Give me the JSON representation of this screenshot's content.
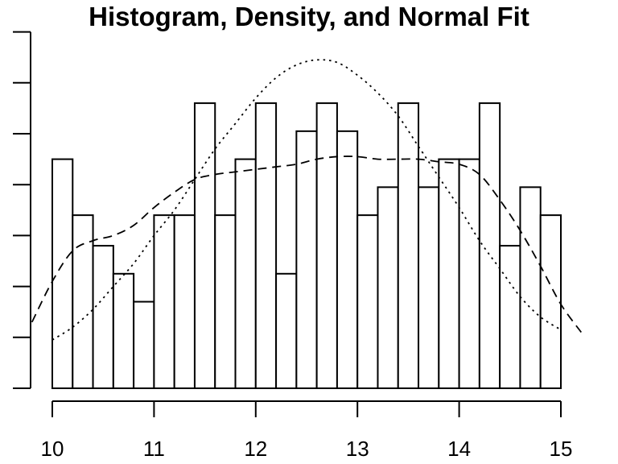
{
  "chart_data": {
    "type": "bar",
    "title": "Histogram, Density, and Normal Fit",
    "xlabel": "",
    "ylabel": "",
    "xlim": [
      10,
      15
    ],
    "ylim": [
      0,
      0.75
    ],
    "grid": false,
    "x_ticks": [
      10,
      11,
      12,
      13,
      14,
      15
    ],
    "y_ticks": [
      0,
      0.1,
      0.2,
      0.3,
      0.4,
      0.5,
      0.6,
      0.7
    ],
    "y_tick_labels_shown": false,
    "bin_width": 0.2,
    "bins": {
      "starts": [
        10.0,
        10.2,
        10.4,
        10.6,
        10.8,
        11.0,
        11.2,
        11.4,
        11.6,
        11.8,
        12.0,
        12.2,
        12.4,
        12.6,
        12.8,
        13.0,
        13.2,
        13.4,
        13.6,
        13.8,
        14.0,
        14.2,
        14.4,
        14.6,
        14.8
      ],
      "densities": [
        0.45,
        0.34,
        0.28,
        0.225,
        0.17,
        0.34,
        0.34,
        0.56,
        0.34,
        0.45,
        0.56,
        0.225,
        0.505,
        0.56,
        0.505,
        0.34,
        0.395,
        0.56,
        0.395,
        0.45,
        0.45,
        0.56,
        0.28,
        0.395,
        0.34
      ]
    },
    "series": [
      {
        "style": "dashed",
        "x": [
          9.8,
          10.0,
          10.2,
          10.4,
          10.6,
          10.8,
          11.0,
          11.2,
          11.4,
          11.6,
          11.8,
          12.0,
          12.2,
          12.4,
          12.6,
          12.8,
          13.0,
          13.2,
          13.4,
          13.6,
          13.8,
          14.0,
          14.2,
          14.4,
          14.6,
          14.8,
          15.0,
          15.2
        ],
        "y": [
          0.13,
          0.21,
          0.27,
          0.29,
          0.3,
          0.32,
          0.355,
          0.385,
          0.41,
          0.42,
          0.425,
          0.43,
          0.435,
          0.44,
          0.45,
          0.455,
          0.455,
          0.45,
          0.45,
          0.45,
          0.445,
          0.44,
          0.42,
          0.37,
          0.31,
          0.24,
          0.165,
          0.11
        ]
      },
      {
        "style": "dotted",
        "x": [
          10.0,
          10.2,
          10.4,
          10.6,
          10.8,
          11.0,
          11.2,
          11.4,
          11.6,
          11.8,
          12.0,
          12.2,
          12.4,
          12.6,
          12.8,
          13.0,
          13.2,
          13.4,
          13.6,
          13.8,
          14.0,
          14.2,
          14.4,
          14.6,
          14.8,
          15.0
        ],
        "y": [
          0.095,
          0.12,
          0.155,
          0.2,
          0.245,
          0.3,
          0.35,
          0.41,
          0.47,
          0.52,
          0.57,
          0.61,
          0.635,
          0.645,
          0.64,
          0.615,
          0.58,
          0.535,
          0.475,
          0.415,
          0.355,
          0.29,
          0.235,
          0.18,
          0.14,
          0.115
        ]
      }
    ]
  }
}
